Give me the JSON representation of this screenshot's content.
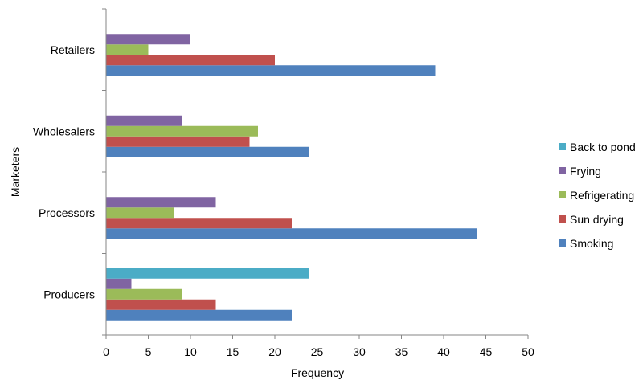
{
  "chart_data": {
    "type": "bar",
    "orientation": "horizontal",
    "title": "",
    "xlabel": "Frequency",
    "ylabel": "Marketers",
    "categories": [
      "Producers",
      "Processors",
      "Wholesalers",
      "Retailers"
    ],
    "xlim": [
      0,
      50
    ],
    "xticks": [
      0,
      5,
      10,
      15,
      20,
      25,
      30,
      35,
      40,
      45,
      50
    ],
    "grid": false,
    "legend_position": "right",
    "series": [
      {
        "name": "Smoking",
        "color": "#4F81BD",
        "values": [
          22,
          44,
          24,
          39
        ]
      },
      {
        "name": "Sun drying",
        "color": "#C0504D",
        "values": [
          13,
          22,
          17,
          20
        ]
      },
      {
        "name": "Refrigerating",
        "color": "#9BBB59",
        "values": [
          9,
          8,
          18,
          5
        ]
      },
      {
        "name": "Frying",
        "color": "#8064A2",
        "values": [
          3,
          13,
          9,
          10
        ]
      },
      {
        "name": "Back to pond",
        "color": "#4BACC6",
        "values": [
          24,
          null,
          null,
          null
        ]
      }
    ]
  }
}
